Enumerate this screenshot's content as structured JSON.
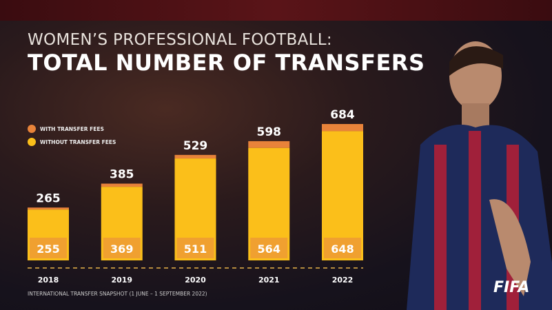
{
  "header": {
    "subtitle": "WOMEN’S PROFESSIONAL FOOTBALL:",
    "title": "TOTAL NUMBER OF TRANSFERS"
  },
  "footnote": "INTERNATIONAL TRANSFER SNAPSHOT (1 JUNE – 1 SEPTEMBER 2022)",
  "logo": "FIFA",
  "chart_data": {
    "type": "bar",
    "stacked": true,
    "categories": [
      "2018",
      "2019",
      "2020",
      "2021",
      "2022"
    ],
    "totals": [
      265,
      385,
      529,
      598,
      684
    ],
    "series": [
      {
        "name": "WITH TRANSFER FEES",
        "values": [
          10,
          16,
          18,
          34,
          36
        ],
        "color": "#e8833a"
      },
      {
        "name": "WITHOUT TRANSFER FEES",
        "values": [
          255,
          369,
          511,
          564,
          648
        ],
        "color": "#fbbf1a"
      }
    ],
    "legend": "top-left",
    "ylim": [
      0,
      684
    ],
    "grid": false
  }
}
